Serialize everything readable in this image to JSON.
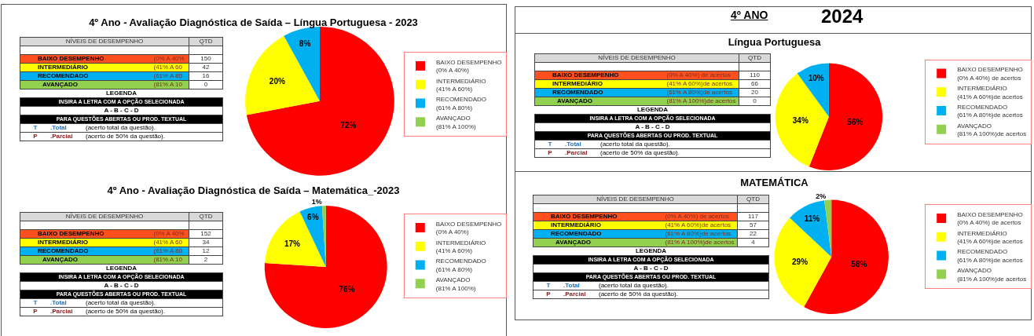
{
  "chart_data": [
    {
      "type": "other",
      "categories": [
        "BAIXO DESEMPENHO",
        "INTERMEDIÁRIO",
        "RECOMENDADO",
        "AVANÇADO"
      ],
      "values": [
        150,
        42,
        16,
        0
      ],
      "data_labels": true,
      "colors": [
        "#ff4f1f",
        "#ffff00",
        "#00b0f0",
        "#92d050"
      ],
      "annotations": [
        "NÍVEIS DE DESEMPENHO",
        "QTD",
        "(0% A 40%",
        "(41% A 60",
        "(61% A 80",
        "(81% A 10",
        "LEGENDA",
        "INSIRA A LETRA COM A OPÇÃO SELECIONADA",
        "A - B - C - D",
        "PARA QUESTÕES ABERTAS OU PROD. TEXTUAL",
        "T",
        ".Total",
        "(acerto total da questão).",
        "P",
        ".Parcial",
        "(acerto de 50% da questão)."
      ]
    },
    {
      "type": "pie",
      "title": "4º Ano - Avaliação Diagnóstica de Saída – Língua Portuguesa - 2023",
      "categories": [
        "BAIXO DESEMPENHO\n(0% A 40%)",
        "INTERMEDIÁRIO\n(41% A 60%)",
        "RECOMENDADO\n(61% A 80%)",
        "AVANÇADO\n(81% A 100%)"
      ],
      "values": [
        72,
        20,
        8,
        0
      ],
      "value_labels": [
        "72%",
        "20%",
        "8%",
        null
      ],
      "colors": [
        "#ff0000",
        "#ffff00",
        "#00b0f0",
        "#92d050"
      ],
      "legend": "right"
    },
    {
      "type": "other",
      "categories": [
        "BAIXO DESEMPENHO",
        "INTERMEDIÁRIO",
        "RECOMENDADO",
        "AVANÇADO"
      ],
      "values": [
        152,
        34,
        12,
        2
      ],
      "data_labels": true,
      "colors": [
        "#ff4f1f",
        "#ffff00",
        "#00b0f0",
        "#92d050"
      ],
      "annotations": [
        "NÍVEIS DE DESEMPENHO",
        "QTD",
        "(0% A 40%",
        "(41% A 60",
        "(61% A 80",
        "(81% A 10",
        "LEGENDA",
        "INSIRA A LETRA COM A OPÇÃO SELECIONADA",
        "A - B - C - D",
        "PARA QUESTÕES ABERTAS OU PROD. TEXTUAL",
        "T",
        ".Total",
        "(acerto total da questão).",
        "P",
        ".Parcial",
        "(acerto de 50% da questão)."
      ]
    },
    {
      "type": "pie",
      "title": "4º Ano - Avaliação Diagnóstica de Saída – Matemática_-2023",
      "categories": [
        "BAIXO DESEMPENHO\n(0% A 40%)",
        "INTERMEDIÁRIO\n(41% A 60%)",
        "RECOMENDADO\n(61% A 80%)",
        "AVANÇADO\n(81% A 100%)"
      ],
      "values": [
        76,
        17,
        6,
        1
      ],
      "value_labels": [
        "76%",
        "17%",
        "6%",
        "1%"
      ],
      "colors": [
        "#ff0000",
        "#ffff00",
        "#00b0f0",
        "#92d050"
      ],
      "legend": "right"
    },
    {
      "type": "other",
      "title": "4º ANO",
      "subtitle": "2024",
      "categories": [
        "BAIXO DESEMPENHO",
        "INTERMEDIÁRIO",
        "RECOMENDADO",
        "AVANÇADO"
      ],
      "values": [
        110,
        66,
        20,
        0
      ],
      "data_labels": true,
      "colors": [
        "#ff4f1f",
        "#ffff00",
        "#00b0f0",
        "#92d050"
      ],
      "annotations": [
        "NÍVEIS DE DESEMPENHO",
        "QTD",
        "(0% A 40%) de acertos",
        "(41% A 60%)de acertos",
        "(61% A 80%)de acertos",
        "(81% A 100%)de acertos",
        "LEGENDA",
        "INSIRA A LETRA COM A OPÇÃO SELECIONADA",
        "A - B - C - D",
        "PARA QUESTÕES ABERTAS OU PROD. TEXTUAL",
        "T",
        ".Total",
        "(acerto total da questão).",
        "P",
        ".Parcial",
        "(acerto de 50% da questão)."
      ]
    },
    {
      "type": "pie",
      "title": "Língua Portuguesa",
      "categories": [
        "BAIXO DESEMPENHO\n(0% A 40%) de acertos",
        "INTERMEDIÁRIO\n(41% A 60%)de acertos",
        "RECOMENDADO\n(61% A 80%)de acertos",
        "AVANÇADO\n(81% A 100%)de acertos"
      ],
      "values": [
        56,
        34,
        10,
        0
      ],
      "value_labels": [
        "56%",
        "34%",
        "10%",
        null
      ],
      "colors": [
        "#ff0000",
        "#ffff00",
        "#00b0f0",
        "#92d050"
      ],
      "legend": "right"
    },
    {
      "type": "other",
      "categories": [
        "BAIXO DESEMPENHO",
        "INTERMEDIÁRIO",
        "RECOMENDADO",
        "AVANÇADO"
      ],
      "values": [
        117,
        57,
        22,
        4
      ],
      "data_labels": true,
      "colors": [
        "#ff4f1f",
        "#ffff00",
        "#00b0f0",
        "#92d050"
      ],
      "annotations": [
        "NÍVEIS DE DESEMPENHO",
        "QTD",
        "(0% A 40%) de acertos",
        "(41% A 60%)de acertos",
        "(61% A 80%)de acertos",
        "(81% A 100%)de acertos",
        "LEGENDA",
        "INSIRA A LETRA COM A OPÇÃO SELECIONADA",
        "A - B - C - D",
        "PARA QUESTÕES ABERTAS OU PROD. TEXTUAL",
        "T",
        ".Total",
        "(acerto total da questão).",
        "P",
        ".Parcial",
        "(acerto de 50% da questão)."
      ]
    },
    {
      "type": "pie",
      "title": "MATEMÁTICA",
      "categories": [
        "BAIXO DESEMPENHO\n(0% A 40%) de acertos",
        "INTERMEDIÁRIO\n(41% A 60%)de acertos",
        "RECOMENDADO\n(61% A 80%)de acertos",
        "AVANÇADO\n(81% A 100%)de acertos"
      ],
      "values": [
        58,
        29,
        11,
        2
      ],
      "value_labels": [
        "58%",
        "29%",
        "11%",
        "2%"
      ],
      "colors": [
        "#ff0000",
        "#ffff00",
        "#00b0f0",
        "#92d050"
      ],
      "legend": "right"
    }
  ]
}
